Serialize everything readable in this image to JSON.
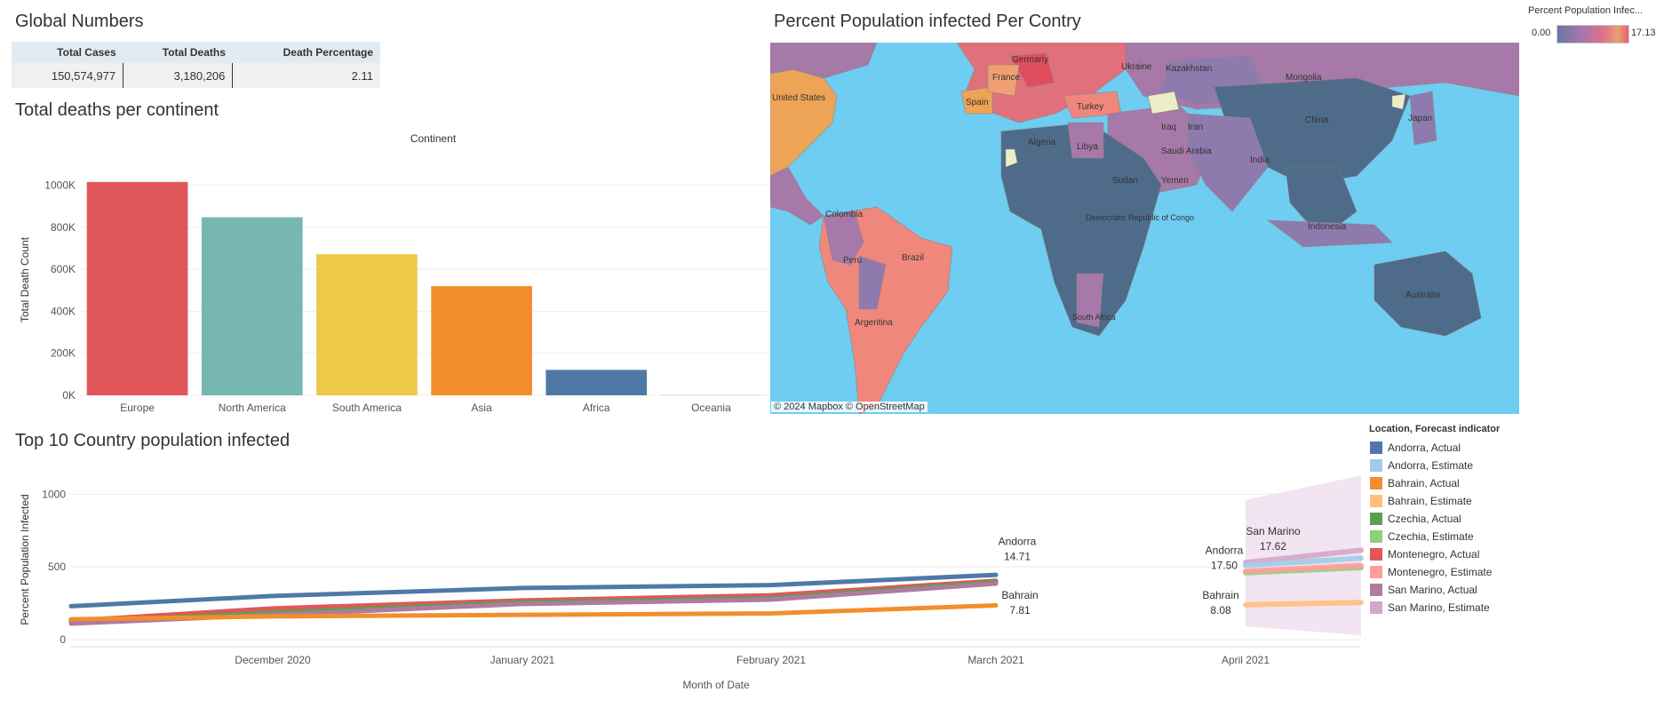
{
  "global_numbers": {
    "title": "Global Numbers",
    "headers": [
      "Total Cases",
      "Total Deaths",
      "Death Percentage"
    ],
    "values": [
      "150,574,977",
      "3,180,206",
      "2.11"
    ]
  },
  "map": {
    "title": "Percent Population infected Per Contry",
    "legend_title": "Percent Population Infec...",
    "legend_min": "0.00",
    "legend_max": "17.13",
    "attribution": "© 2024 Mapbox  © OpenStreetMap",
    "labels": [
      "Kazakhstan",
      "Mongolia",
      "Ukraine",
      "Turkey",
      "China",
      "Japan",
      "Iran",
      "Iraq",
      "Saudi Arabia",
      "Yemen",
      "India",
      "Algeria",
      "Libya",
      "Sudan",
      "Democratic Republic of Congo",
      "South Africa",
      "Brazil",
      "Colombia",
      "Peru",
      "Argentina",
      "Australia",
      "Indonesia",
      "Spain",
      "France",
      "Germany",
      "United States"
    ]
  },
  "bar_chart": {
    "title": "Total deaths per continent",
    "top_label": "Continent",
    "chart_data": {
      "type": "bar",
      "categories": [
        "Europe",
        "North America",
        "South America",
        "Asia",
        "Africa",
        "Oceania"
      ],
      "values": [
        1016000,
        848000,
        672000,
        520000,
        121000,
        1000
      ],
      "colors": [
        "#e15759",
        "#76b7b2",
        "#edc948",
        "#f28e2b",
        "#4e79a7",
        "#59a14f"
      ],
      "ylabel": "Total Death Count",
      "ylim": [
        0,
        1100000
      ],
      "yticks": [
        0,
        200000,
        400000,
        600000,
        800000,
        1000000
      ],
      "ytick_labels": [
        "0K",
        "200K",
        "400K",
        "600K",
        "800K",
        "1000K"
      ]
    }
  },
  "line_chart": {
    "title": "Top 10 Country population infected",
    "chart_data": {
      "type": "line",
      "xlabel": "Month of Date",
      "ylabel": "Percent Population Infected",
      "x_ticks": [
        "December 2020",
        "January 2021",
        "February 2021",
        "March 2021",
        "April 2021"
      ],
      "ylim": [
        0,
        1100
      ],
      "yticks": [
        0,
        500,
        1000
      ],
      "series": [
        {
          "name": "Andorra, Actual",
          "color": "#4e79a7",
          "points": [
            [
              "November 2020",
              230
            ],
            [
              "December 2020",
              300
            ],
            [
              "January 2021",
              355
            ],
            [
              "February 2021",
              375
            ],
            [
              "March 2021",
              445
            ]
          ]
        },
        {
          "name": "Montenegro, Actual",
          "color": "#e15759",
          "points": [
            [
              "November 2020",
              130
            ],
            [
              "December 2020",
              215
            ],
            [
              "January 2021",
              270
            ],
            [
              "February 2021",
              305
            ],
            [
              "March 2021",
              405
            ]
          ]
        },
        {
          "name": "Czechia, Actual",
          "color": "#59a14f",
          "points": [
            [
              "November 2020",
              120
            ],
            [
              "December 2020",
              185
            ],
            [
              "January 2021",
              255
            ],
            [
              "February 2021",
              285
            ],
            [
              "March 2021",
              395
            ]
          ]
        },
        {
          "name": "San Marino, Actual",
          "color": "#b07aa1",
          "points": [
            [
              "November 2020",
              110
            ],
            [
              "December 2020",
              170
            ],
            [
              "January 2021",
              245
            ],
            [
              "February 2021",
              275
            ],
            [
              "March 2021",
              385
            ]
          ]
        },
        {
          "name": "Bahrain, Actual",
          "color": "#f28e2b",
          "points": [
            [
              "November 2020",
              140
            ],
            [
              "December 2020",
              160
            ],
            [
              "January 2021",
              170
            ],
            [
              "February 2021",
              180
            ],
            [
              "March 2021",
              235
            ]
          ]
        }
      ],
      "estimates": [
        {
          "name": "San Marino, Estimate",
          "color": "#d4a6c8",
          "points": [
            [
              "April 2021",
              530
            ],
            [
              "May 2021",
              615
            ]
          ]
        },
        {
          "name": "Andorra, Estimate",
          "color": "#a0cbe8",
          "points": [
            [
              "April 2021",
              510
            ],
            [
              "May 2021",
              560
            ]
          ]
        },
        {
          "name": "Czechia, Estimate",
          "color": "#8cd17d",
          "points": [
            [
              "April 2021",
              460
            ],
            [
              "May 2021",
              495
            ]
          ]
        },
        {
          "name": "Montenegro, Estimate",
          "color": "#ff9d9a",
          "points": [
            [
              "April 2021",
              470
            ],
            [
              "May 2021",
              510
            ]
          ]
        },
        {
          "name": "Bahrain, Estimate",
          "color": "#ffbe7d",
          "points": [
            [
              "April 2021",
              240
            ],
            [
              "May 2021",
              255
            ]
          ]
        }
      ],
      "annotations": [
        {
          "label": "Andorra",
          "value": "14.71"
        },
        {
          "label": "Bahrain",
          "value": "7.81"
        },
        {
          "label": "Andorra",
          "value": "17.50"
        },
        {
          "label": "Bahrain",
          "value": "8.08"
        },
        {
          "label": "San Marino",
          "value": "17.62"
        }
      ],
      "legend_title": "Location, Forecast indicator",
      "legend": [
        {
          "name": "Andorra, Actual",
          "color": "#4e79a7"
        },
        {
          "name": "Andorra, Estimate",
          "color": "#a0cbe8"
        },
        {
          "name": "Bahrain, Actual",
          "color": "#f28e2b"
        },
        {
          "name": "Bahrain, Estimate",
          "color": "#ffbe7d"
        },
        {
          "name": "Czechia, Actual",
          "color": "#59a14f"
        },
        {
          "name": "Czechia, Estimate",
          "color": "#8cd17d"
        },
        {
          "name": "Montenegro, Actual",
          "color": "#e15759"
        },
        {
          "name": "Montenegro, Estimate",
          "color": "#ff9d9a"
        },
        {
          "name": "San Marino, Actual",
          "color": "#b07aa1"
        },
        {
          "name": "San Marino, Estimate",
          "color": "#d4a6c8"
        }
      ]
    }
  }
}
